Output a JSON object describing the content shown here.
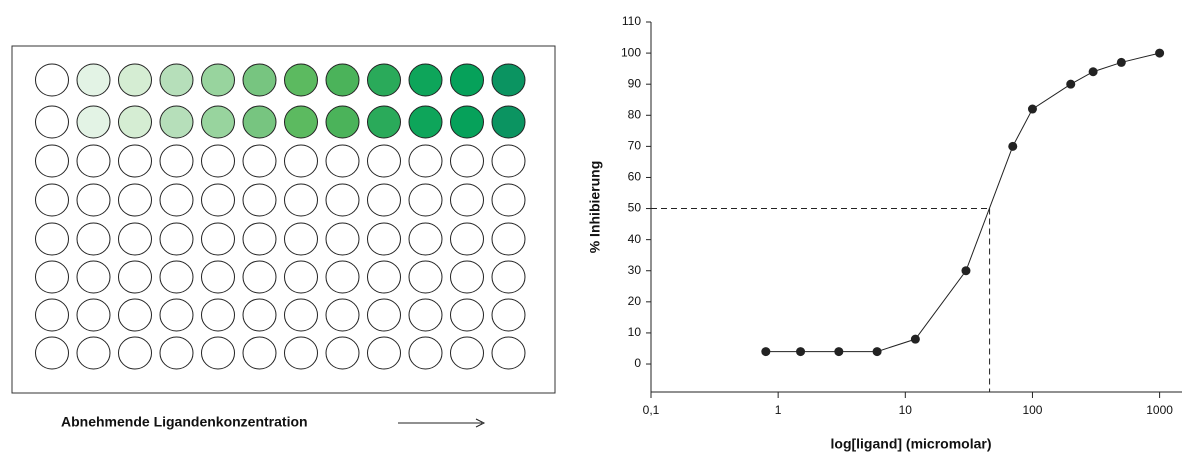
{
  "plate": {
    "caption": "Abnehmende Ligandenkonzentration",
    "well_colors": [
      "#ffffff",
      "#e3f3e5",
      "#d5edd3",
      "#b6dfba",
      "#98d49e",
      "#77c580",
      "#5cba60",
      "#4bb35a",
      "#2aaa5a",
      "#0ea55a",
      "#06a15a",
      "#0b9461"
    ]
  },
  "chart_data": {
    "type": "line",
    "xlabel": "log[ligand] (micromolar)",
    "ylabel": "% Inhibierung",
    "x": [
      0.8,
      1.5,
      3,
      6,
      12,
      30,
      70,
      100,
      200,
      300,
      500,
      1000
    ],
    "series": [
      {
        "color": "#222222",
        "values": [
          4,
          4,
          4,
          4,
          8,
          30,
          70,
          82,
          90,
          94,
          97,
          100
        ]
      }
    ],
    "xscale": "log",
    "xlim": [
      0.1,
      1500
    ],
    "xticks": [
      {
        "value": 0.1,
        "label": "0,1"
      },
      1,
      10,
      100,
      1000
    ],
    "ylim": [
      -9,
      110
    ],
    "yticks": [
      0,
      10,
      20,
      30,
      40,
      50,
      60,
      70,
      80,
      90,
      100,
      110
    ],
    "reference": {
      "x": 46,
      "y": 50
    }
  }
}
